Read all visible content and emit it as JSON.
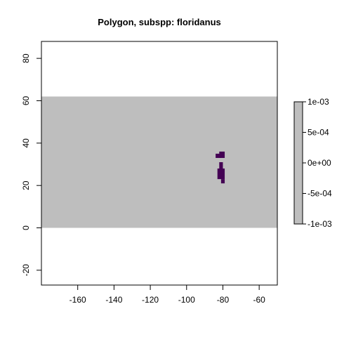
{
  "chart_data": {
    "type": "heatmap",
    "title": "Polygon, subspp: floridanus",
    "xlabel": "",
    "ylabel": "",
    "xlim": [
      -180,
      -50
    ],
    "ylim": [
      -27,
      88
    ],
    "x_ticks": [
      -160,
      -140,
      -120,
      -100,
      -80,
      -60
    ],
    "y_ticks": [
      -20,
      0,
      20,
      40,
      60,
      80
    ],
    "raster_extent": {
      "x": [
        -180,
        -50
      ],
      "y": [
        0,
        62
      ]
    },
    "background_value": 0,
    "background_color": "#bebebe",
    "polygon_color": "#440154",
    "polygon_cells": [
      {
        "x": [
          -84,
          -81
        ],
        "y": [
          33,
          35
        ]
      },
      {
        "x": [
          -82,
          -79
        ],
        "y": [
          33,
          36
        ]
      },
      {
        "x": [
          -82,
          -80
        ],
        "y": [
          27,
          31
        ]
      },
      {
        "x": [
          -83,
          -79
        ],
        "y": [
          23,
          28
        ]
      },
      {
        "x": [
          -81,
          -79
        ],
        "y": [
          21,
          23
        ]
      }
    ],
    "legend": {
      "min": -0.001,
      "max": 0.001,
      "color": "#bebebe",
      "tick_values": [
        0.001,
        0.0005,
        0,
        -0.0005,
        -0.001
      ],
      "tick_labels": [
        "1e-03",
        "5e-04",
        "0e+00",
        "-5e-04",
        "-1e-03"
      ]
    }
  }
}
